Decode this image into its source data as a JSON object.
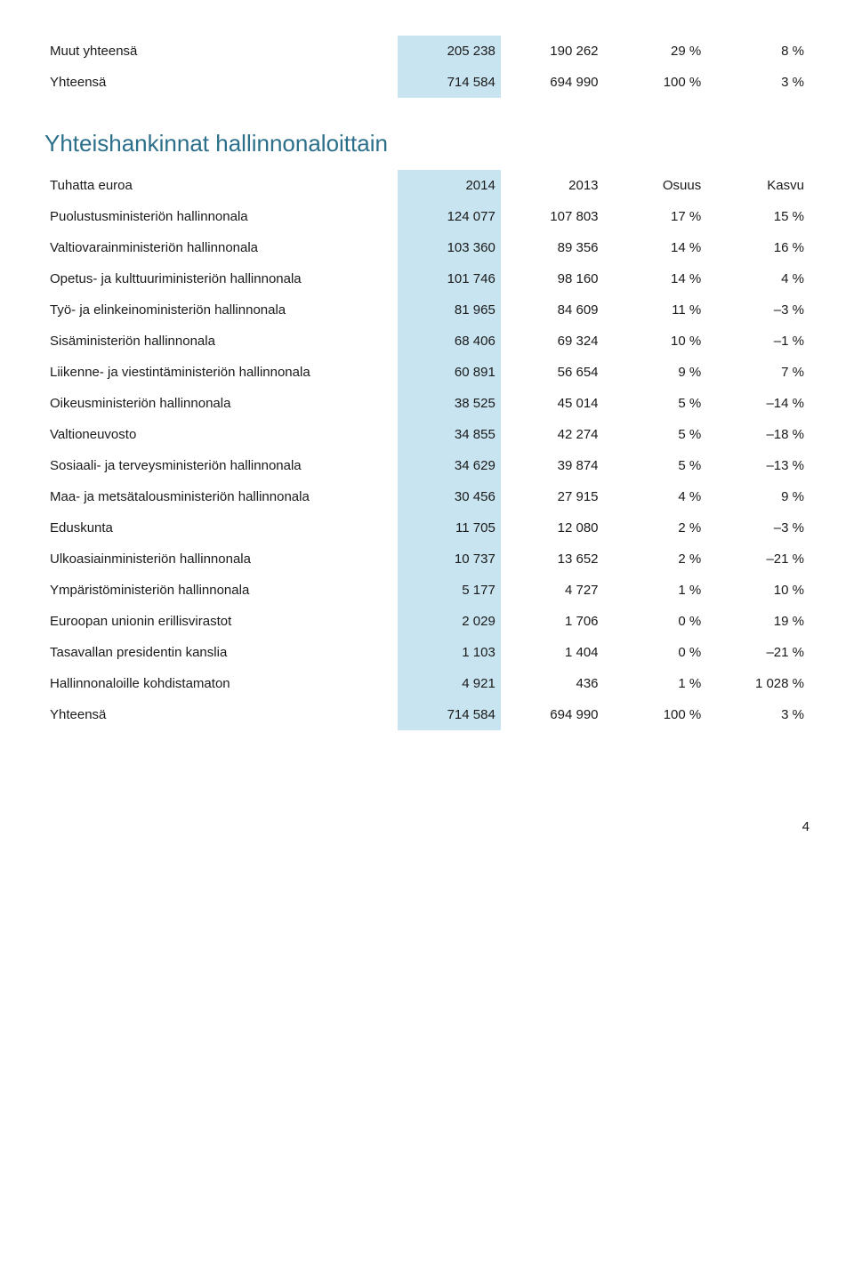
{
  "table1": {
    "rows": [
      {
        "label": "Muut yhteensä",
        "v1": "205 238",
        "v2": "190 262",
        "pct": "29 %",
        "grow": "8 %"
      },
      {
        "label": "Yhteensä",
        "v1": "714 584",
        "v2": "694 990",
        "pct": "100 %",
        "grow": "3 %"
      }
    ]
  },
  "section_title": "Yhteishankinnat hallinnonaloittain",
  "table2": {
    "header": {
      "label": "Tuhatta euroa",
      "v1": "2014",
      "v2": "2013",
      "pct": "Osuus",
      "grow": "Kasvu"
    },
    "rows": [
      {
        "label": "Puolustusministeriön hallinnonala",
        "v1": "124 077",
        "v2": "107 803",
        "pct": "17 %",
        "grow": "15 %"
      },
      {
        "label": "Valtiovarainministeriön hallinnonala",
        "v1": "103 360",
        "v2": "89 356",
        "pct": "14 %",
        "grow": "16 %"
      },
      {
        "label": "Opetus- ja kulttuuriministeriön hallinnonala",
        "v1": "101 746",
        "v2": "98 160",
        "pct": "14 %",
        "grow": "4 %"
      },
      {
        "label": "Työ- ja elinkeinoministeriön hallinnonala",
        "v1": "81 965",
        "v2": "84 609",
        "pct": "11 %",
        "grow": "–3 %"
      },
      {
        "label": "Sisäministeriön hallinnonala",
        "v1": "68 406",
        "v2": "69 324",
        "pct": "10 %",
        "grow": "–1 %"
      },
      {
        "label": "Liikenne- ja viestintäministeriön hallinnonala",
        "v1": "60 891",
        "v2": "56 654",
        "pct": "9 %",
        "grow": "7 %"
      },
      {
        "label": "Oikeusministeriön hallinnonala",
        "v1": "38 525",
        "v2": "45 014",
        "pct": "5 %",
        "grow": "–14 %"
      },
      {
        "label": "Valtioneuvosto",
        "v1": "34 855",
        "v2": "42 274",
        "pct": "5 %",
        "grow": "–18 %"
      },
      {
        "label": "Sosiaali- ja terveysministeriön hallinnonala",
        "v1": "34 629",
        "v2": "39 874",
        "pct": "5 %",
        "grow": "–13 %"
      },
      {
        "label": "Maa- ja metsätalousministeriön hallinnonala",
        "v1": "30 456",
        "v2": "27 915",
        "pct": "4 %",
        "grow": "9 %"
      },
      {
        "label": "Eduskunta",
        "v1": "11 705",
        "v2": "12 080",
        "pct": "2 %",
        "grow": "–3 %"
      },
      {
        "label": "Ulkoasiainministeriön hallinnonala",
        "v1": "10 737",
        "v2": "13 652",
        "pct": "2 %",
        "grow": "–21 %"
      },
      {
        "label": "Ympäristöministeriön hallinnonala",
        "v1": "5 177",
        "v2": "4 727",
        "pct": "1 %",
        "grow": "10 %"
      },
      {
        "label": "Euroopan unionin erillisvirastot",
        "v1": "2 029",
        "v2": "1 706",
        "pct": "0 %",
        "grow": "19 %"
      },
      {
        "label": "Tasavallan presidentin kanslia",
        "v1": "1 103",
        "v2": "1 404",
        "pct": "0 %",
        "grow": "–21 %"
      },
      {
        "label": "Hallinnonaloille kohdistamaton",
        "v1": "4 921",
        "v2": "436",
        "pct": "1 %",
        "grow": "1 028 %"
      },
      {
        "label": "Yhteensä",
        "v1": "714 584",
        "v2": "694 990",
        "pct": "100 %",
        "grow": "3 %"
      }
    ]
  },
  "page_number": "4",
  "colors": {
    "strip": "#c8e4f0",
    "title": "#2b6f8a",
    "text": "#1a1a1a",
    "bg": "#ffffff"
  }
}
